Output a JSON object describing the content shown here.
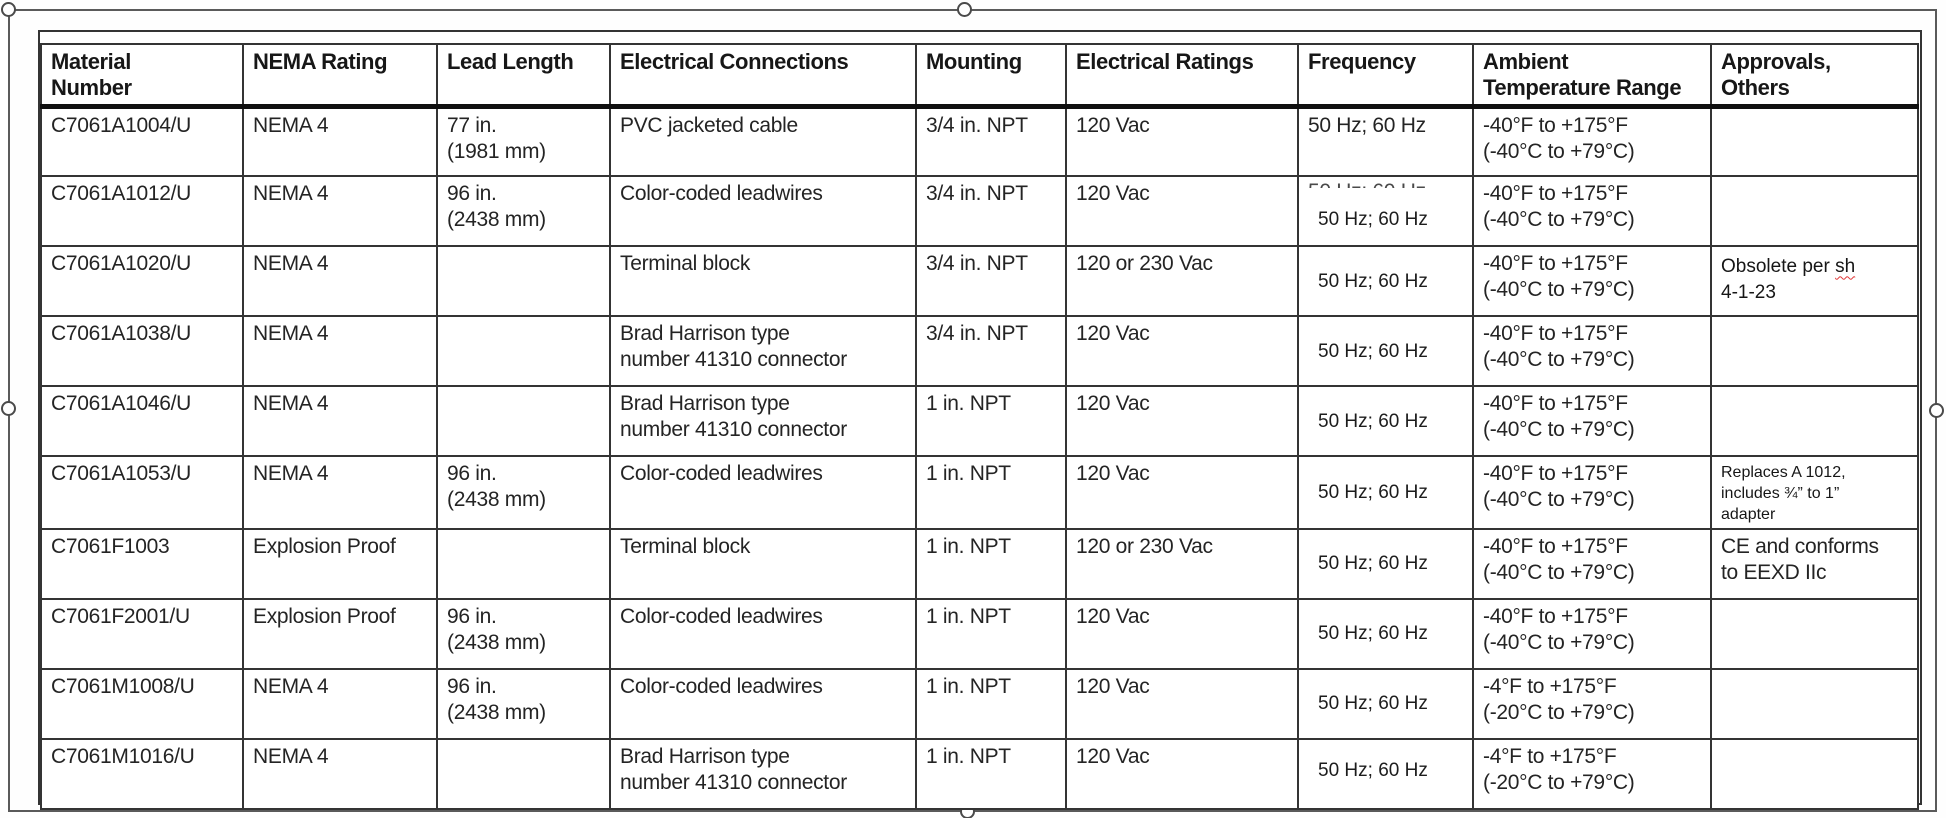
{
  "frame": {
    "type": "image-selection-frame",
    "handles": [
      "top-left",
      "top-center",
      "left-middle",
      "right-middle",
      "bottom-center"
    ],
    "colors": {
      "frame": "#5a5a5a",
      "handle_fill": "#ffffff",
      "table_border": "#343434",
      "text": "#242424",
      "squiggle": "#e03535"
    }
  },
  "table": {
    "columns": [
      "Material\nNumber",
      "NEMA Rating",
      "Lead Length",
      "Electrical Connections",
      "Mounting",
      "Electrical Ratings",
      "Frequency",
      "Ambient\nTemperature Range",
      "Approvals,\nOthers"
    ],
    "rows": [
      {
        "cells": [
          "C7061A1004/U",
          "NEMA 4",
          "77 in.\n(1981 mm)",
          "PVC jacketed cable",
          "3/4 in. NPT",
          "120 Vac",
          "50 Hz; 60 Hz",
          "-40°F to +175°F\n(-40°C to +79°C)",
          ""
        ]
      },
      {
        "cells": [
          "C7061A1012/U",
          "NEMA 4",
          "96 in.\n(2438 mm)",
          "Color-coded leadwires",
          "3/4 in. NPT",
          "120 Vac",
          "50 Hz; 60 Hz",
          "-40°F to +175°F\n(-40°C to +79°C)",
          ""
        ]
      },
      {
        "cells": [
          "C7061A1020/U",
          "NEMA 4",
          "",
          "Terminal block",
          "3/4 in. NPT",
          "120 or 230 Vac",
          "50 Hz; 60 Hz",
          "-40°F to +175°F\n(-40°C to +79°C)",
          {
            "pre": "Obsolete per ",
            "word": "sh",
            "line2": "4-1-23"
          }
        ]
      },
      {
        "cells": [
          "C7061A1038/U",
          "NEMA 4",
          "",
          "Brad Harrison type\nnumber 41310 connector",
          "3/4 in. NPT",
          "120 Vac",
          "50 Hz; 60 Hz",
          "-40°F to +175°F\n(-40°C to +79°C)",
          ""
        ]
      },
      {
        "cells": [
          "C7061A1046/U",
          "NEMA 4",
          "",
          "Brad Harrison type\nnumber 41310 connector",
          "1 in. NPT",
          "120 Vac",
          "50 Hz; 60 Hz",
          "-40°F to +175°F\n(-40°C to +79°C)",
          ""
        ]
      },
      {
        "cells": [
          "C7061A1053/U",
          "NEMA 4",
          "96 in.\n(2438 mm)",
          "Color-coded leadwires",
          "1 in. NPT",
          "120 Vac",
          "50 Hz; 60 Hz",
          "-40°F to +175°F\n(-40°C to +79°C)",
          "Replaces A 1012,\nincludes ¾” to 1”\nadapter"
        ]
      },
      {
        "cells": [
          "C7061F1003",
          "Explosion Proof",
          "",
          "Terminal block",
          "1 in. NPT",
          "120 or 230 Vac",
          "50 Hz; 60 Hz",
          "-40°F to +175°F\n(-40°C to +79°C)",
          "CE and conforms\nto EEXD IIc"
        ]
      },
      {
        "cells": [
          "C7061F2001/U",
          "Explosion Proof",
          "96 in.\n(2438 mm)",
          "Color-coded leadwires",
          "1 in. NPT",
          "120 Vac",
          "50 Hz; 60 Hz",
          "-40°F to +175°F\n(-40°C to +79°C)",
          ""
        ]
      },
      {
        "cells": [
          "C7061M1008/U",
          "NEMA 4",
          "96 in.\n(2438 mm)",
          "Color-coded leadwires",
          "1 in. NPT",
          "120 Vac",
          "50 Hz; 60 Hz",
          "-4°F to +175°F\n(-20°C to +79°C)",
          ""
        ]
      },
      {
        "cells": [
          "C7061M1016/U",
          "NEMA 4",
          "",
          "Brad Harrison type\nnumber 41310 connector",
          "1 in. NPT",
          "120 Vac",
          "50 Hz; 60 Hz",
          "-4°F to +175°F\n(-20°C to +79°C)",
          ""
        ]
      }
    ]
  }
}
